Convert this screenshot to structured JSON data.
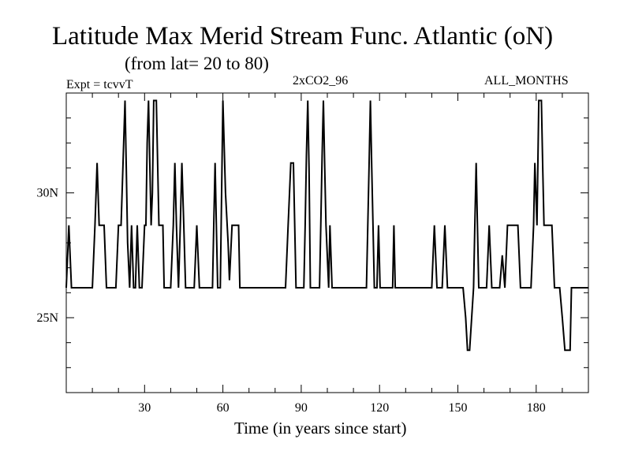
{
  "chart_data": {
    "type": "line",
    "title": "Latitude Max Merid Stream Func. Atlantic (oN)",
    "subtitle": "(from lat= 20 to 80)",
    "annotations": {
      "left": "Expt = tcvvT",
      "center": "2xCO2_96",
      "right": "ALL_MONTHS"
    },
    "xlabel": "Time (in years since start)",
    "ylabel": "",
    "xlim": [
      0,
      200
    ],
    "ylim": [
      22,
      34
    ],
    "x_ticks": [
      {
        "value": 30,
        "label": "30"
      },
      {
        "value": 60,
        "label": "60"
      },
      {
        "value": 90,
        "label": "90"
      },
      {
        "value": 120,
        "label": "120"
      },
      {
        "value": 150,
        "label": "150"
      },
      {
        "value": 180,
        "label": "180"
      }
    ],
    "y_ticks": [
      {
        "value": 25,
        "label": "25N"
      },
      {
        "value": 30,
        "label": "30N"
      }
    ],
    "grid": false,
    "series": [
      {
        "name": "",
        "color": "#000000",
        "points": [
          [
            0,
            26.2
          ],
          [
            1,
            28.7
          ],
          [
            2,
            26.2
          ],
          [
            10,
            26.2
          ],
          [
            11,
            28.7
          ],
          [
            11.8,
            31.2
          ],
          [
            12.6,
            28.7
          ],
          [
            14.5,
            28.7
          ],
          [
            15.4,
            26.2
          ],
          [
            19,
            26.2
          ],
          [
            20,
            28.7
          ],
          [
            21,
            28.7
          ],
          [
            22,
            32
          ],
          [
            22.5,
            33.7
          ],
          [
            23,
            31
          ],
          [
            23.5,
            28
          ],
          [
            24.3,
            26.2
          ],
          [
            25,
            28.7
          ],
          [
            25.8,
            26.2
          ],
          [
            26.5,
            26.2
          ],
          [
            27.2,
            28.7
          ],
          [
            28,
            26.2
          ],
          [
            29,
            26.2
          ],
          [
            30,
            28.7
          ],
          [
            30.5,
            28.7
          ],
          [
            31,
            32
          ],
          [
            31.5,
            33.7
          ],
          [
            32,
            31.2
          ],
          [
            32.5,
            28.7
          ],
          [
            33,
            30
          ],
          [
            33.5,
            33.7
          ],
          [
            34,
            33.7
          ],
          [
            34.5,
            33.7
          ],
          [
            35.5,
            28.7
          ],
          [
            37,
            28.7
          ],
          [
            37.5,
            26.2
          ],
          [
            40,
            26.2
          ],
          [
            41,
            28.7
          ],
          [
            41.6,
            31.2
          ],
          [
            42.2,
            28.7
          ],
          [
            43,
            26.2
          ],
          [
            43.7,
            28.7
          ],
          [
            44.3,
            31.2
          ],
          [
            45,
            28.7
          ],
          [
            45.7,
            26.2
          ],
          [
            49,
            26.2
          ],
          [
            50,
            28.7
          ],
          [
            51,
            26.2
          ],
          [
            56,
            26.2
          ],
          [
            56.5,
            28.7
          ],
          [
            57,
            31.2
          ],
          [
            57.5,
            28.7
          ],
          [
            58,
            26.2
          ],
          [
            59,
            26.2
          ],
          [
            60,
            33.7
          ],
          [
            61,
            30
          ],
          [
            62,
            28
          ],
          [
            62.5,
            26.5
          ],
          [
            63.5,
            28.7
          ],
          [
            66,
            28.7
          ],
          [
            66.5,
            26.2
          ],
          [
            84,
            26.2
          ],
          [
            85,
            28.7
          ],
          [
            86,
            31.2
          ],
          [
            87,
            31.2
          ],
          [
            88,
            26.2
          ],
          [
            91,
            26.2
          ],
          [
            91.5,
            28.7
          ],
          [
            92,
            31.5
          ],
          [
            92.5,
            33.7
          ],
          [
            93,
            31
          ],
          [
            93.5,
            26.2
          ],
          [
            97,
            26.2
          ],
          [
            97.5,
            28.7
          ],
          [
            98,
            31.5
          ],
          [
            98.5,
            33.7
          ],
          [
            99,
            31
          ],
          [
            99.5,
            28.7
          ],
          [
            100.5,
            26.2
          ],
          [
            101,
            28.7
          ],
          [
            101.8,
            26.2
          ],
          [
            115,
            26.2
          ],
          [
            115.5,
            28.7
          ],
          [
            116,
            31.2
          ],
          [
            116.5,
            33.7
          ],
          [
            117,
            31
          ],
          [
            117.5,
            28.7
          ],
          [
            118,
            26.2
          ],
          [
            119,
            26.2
          ],
          [
            119.6,
            28.7
          ],
          [
            120.2,
            26.2
          ],
          [
            125,
            26.2
          ],
          [
            125.5,
            28.7
          ],
          [
            126,
            26.2
          ],
          [
            140,
            26.2
          ],
          [
            141,
            28.7
          ],
          [
            142,
            26.2
          ],
          [
            144,
            26.2
          ],
          [
            145,
            28.7
          ],
          [
            146,
            26.2
          ],
          [
            152,
            26.2
          ],
          [
            153,
            25
          ],
          [
            153.7,
            23.7
          ],
          [
            154.5,
            23.7
          ],
          [
            155.3,
            25
          ],
          [
            156,
            26.2
          ],
          [
            156.5,
            28.7
          ],
          [
            157,
            31.2
          ],
          [
            157.5,
            28.7
          ],
          [
            158,
            26.2
          ],
          [
            161,
            26.2
          ],
          [
            162,
            28.7
          ],
          [
            163,
            26.2
          ],
          [
            166,
            26.2
          ],
          [
            167,
            27.5
          ],
          [
            168,
            26.2
          ],
          [
            169,
            28.7
          ],
          [
            173,
            28.7
          ],
          [
            174,
            26.2
          ],
          [
            178,
            26.2
          ],
          [
            179,
            28.7
          ],
          [
            179.5,
            31.2
          ],
          [
            180.3,
            28.7
          ],
          [
            181,
            33.7
          ],
          [
            182,
            33.7
          ],
          [
            182.5,
            31
          ],
          [
            183,
            28.7
          ],
          [
            186,
            28.7
          ],
          [
            187,
            26.2
          ],
          [
            189,
            26.2
          ],
          [
            190,
            25
          ],
          [
            191,
            23.7
          ],
          [
            193,
            23.7
          ],
          [
            193.5,
            26.2
          ],
          [
            194,
            26.2
          ],
          [
            200,
            26.2
          ]
        ]
      }
    ]
  }
}
